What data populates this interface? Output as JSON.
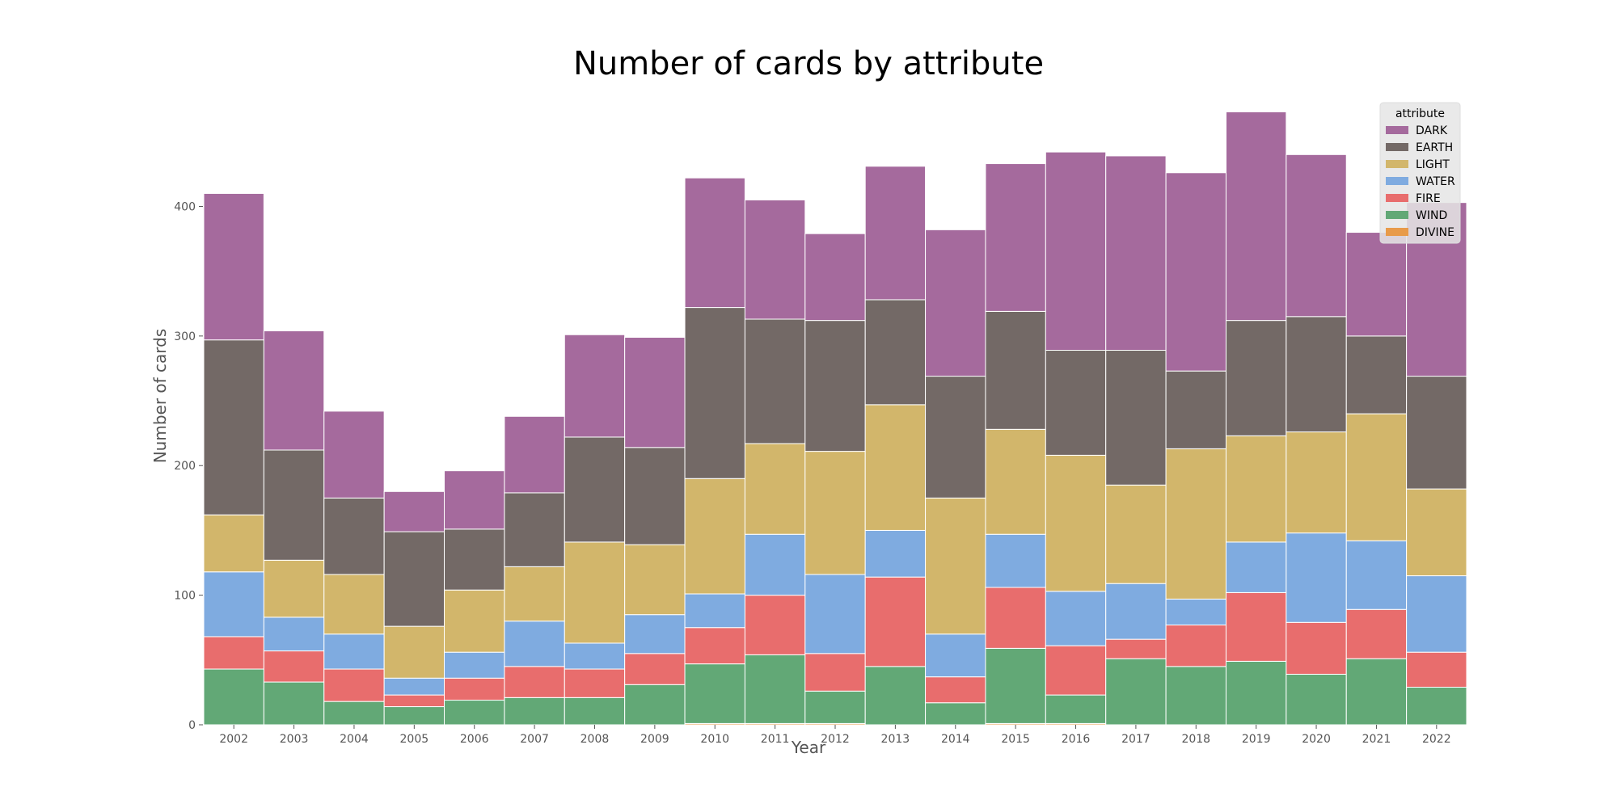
{
  "chart_data": {
    "type": "bar",
    "stacked": true,
    "title": "Number of cards by attribute",
    "xlabel": "Year",
    "ylabel": "Number of cards",
    "ylim": [
      0,
      472
    ],
    "yticks": [
      0,
      100,
      200,
      300,
      400
    ],
    "grid": false,
    "legend": {
      "title": "attribute",
      "placement": "top-right"
    },
    "categories": [
      "2002",
      "2003",
      "2004",
      "2005",
      "2006",
      "2007",
      "2008",
      "2009",
      "2010",
      "2011",
      "2012",
      "2013",
      "2014",
      "2015",
      "2016",
      "2017",
      "2018",
      "2019",
      "2020",
      "2021",
      "2022"
    ],
    "series": [
      {
        "name": "DIVINE",
        "color": "#E89B4A",
        "values": [
          0,
          0,
          0,
          0,
          0,
          0,
          0,
          0,
          1,
          1,
          1,
          0,
          0,
          1,
          1,
          0,
          0,
          0,
          0,
          0,
          0
        ]
      },
      {
        "name": "WIND",
        "color": "#62A876",
        "values": [
          43,
          33,
          18,
          14,
          19,
          21,
          21,
          31,
          46,
          53,
          25,
          45,
          17,
          58,
          22,
          51,
          45,
          49,
          39,
          51,
          29
        ]
      },
      {
        "name": "FIRE",
        "color": "#E86D6D",
        "values": [
          25,
          24,
          25,
          9,
          17,
          24,
          22,
          24,
          28,
          46,
          29,
          69,
          20,
          47,
          38,
          15,
          32,
          53,
          40,
          38,
          27
        ]
      },
      {
        "name": "WATER",
        "color": "#7FABE0",
        "values": [
          50,
          26,
          27,
          13,
          20,
          35,
          20,
          30,
          26,
          47,
          61,
          36,
          33,
          41,
          42,
          43,
          20,
          39,
          69,
          53,
          59
        ]
      },
      {
        "name": "LIGHT",
        "color": "#D2B66B",
        "values": [
          44,
          44,
          46,
          40,
          48,
          42,
          78,
          54,
          89,
          70,
          95,
          97,
          105,
          81,
          105,
          76,
          116,
          82,
          78,
          98,
          67
        ]
      },
      {
        "name": "EARTH",
        "color": "#736966",
        "values": [
          135,
          85,
          59,
          73,
          47,
          57,
          81,
          75,
          132,
          96,
          101,
          81,
          94,
          91,
          81,
          104,
          60,
          89,
          89,
          60,
          87
        ]
      },
      {
        "name": "DARK",
        "color": "#A56A9D",
        "values": [
          113,
          92,
          67,
          31,
          45,
          59,
          79,
          85,
          100,
          92,
          67,
          103,
          113,
          114,
          153,
          150,
          153,
          161,
          125,
          80,
          134
        ]
      }
    ],
    "legend_order": [
      "DARK",
      "EARTH",
      "LIGHT",
      "WATER",
      "FIRE",
      "WIND",
      "DIVINE"
    ]
  }
}
